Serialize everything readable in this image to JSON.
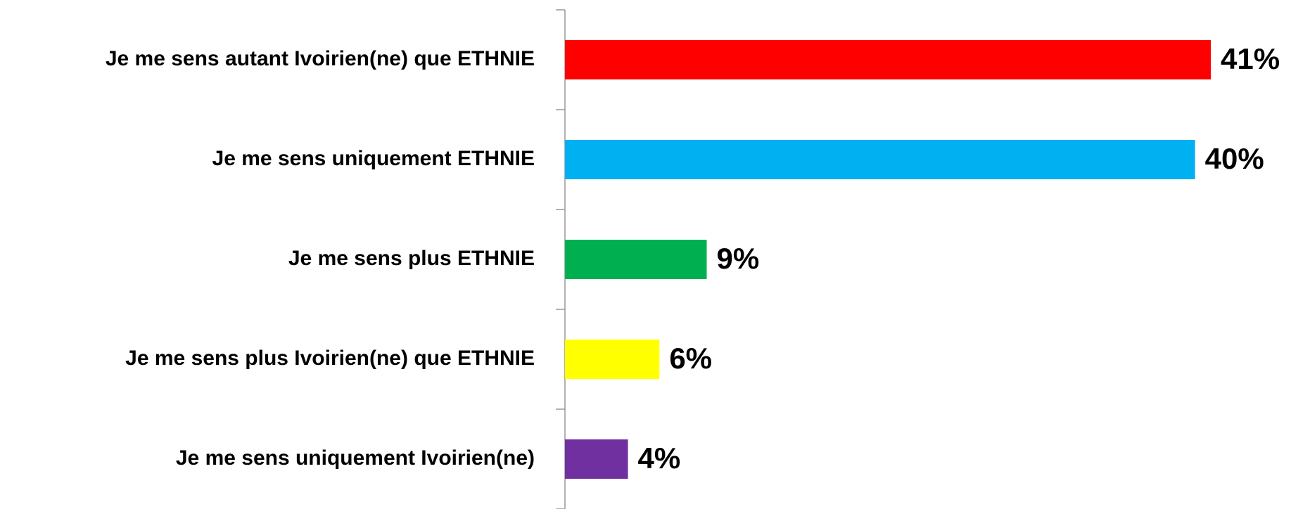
{
  "chart_data": {
    "type": "bar",
    "orientation": "horizontal",
    "categories": [
      "Je me sens autant Ivoirien(ne) que ETHNIE",
      "Je me sens uniquement ETHNIE",
      "Je me sens plus ETHNIE",
      "Je me sens plus Ivoirien(ne) que ETHNIE",
      "Je me sens uniquement Ivoirien(ne)"
    ],
    "values": [
      41,
      40,
      9,
      6,
      4
    ],
    "value_labels": [
      "41%",
      "40%",
      "9%",
      "6%",
      "4%"
    ],
    "colors": [
      "#ff0000",
      "#00b0f0",
      "#00b050",
      "#ffff00",
      "#7030a0"
    ],
    "grid": false
  }
}
